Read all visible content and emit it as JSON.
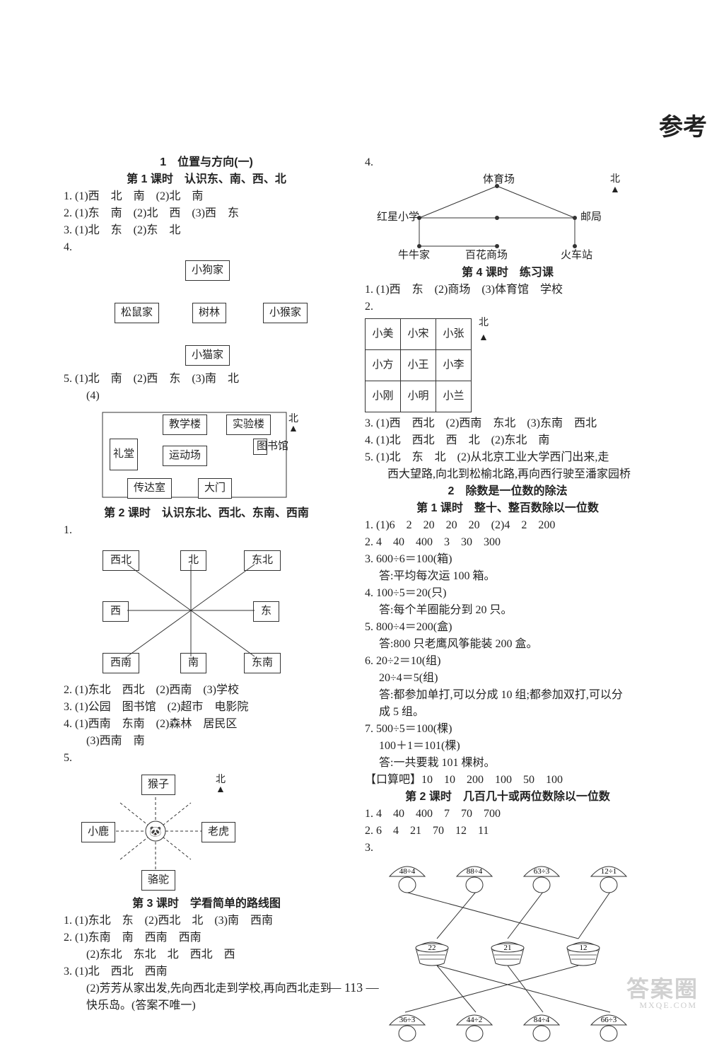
{
  "page_title_right": "参考",
  "page_number": "— 113 —",
  "watermark": "答案圈",
  "watermark_sub": "MXQE.COM",
  "left": {
    "unit1_title": "1　位置与方向(一)",
    "lesson1_title": "第 1 课时　认识东、南、西、北",
    "q1": "1. (1)西　北　南　(2)北　南",
    "q2": "2. (1)东　南　(2)北　西　(3)西　东",
    "q3": "3. (1)北　东　(2)东　北",
    "q4_num": "4.",
    "dia4": {
      "top": "小狗家",
      "left": "松鼠家",
      "mid": "树林",
      "right": "小猴家",
      "bottom": "小猫家"
    },
    "q5": "5. (1)北　南　(2)西　东　(3)南　北",
    "q5_4": "　　(4)",
    "dia5": {
      "teach": "教学楼",
      "lab": "实验楼",
      "hall": "礼堂",
      "field": "运动场",
      "lib": "图书馆",
      "guard": "传达室",
      "gate": "大门",
      "north": "北",
      "arrow": "▲"
    },
    "lesson2_title": "第 2 课时　认识东北、西北、东南、西南",
    "l2_q1_num": "1.",
    "compass": {
      "nw": "西北",
      "n": "北",
      "ne": "东北",
      "w": "西",
      "e": "东",
      "sw": "西南",
      "s": "南",
      "se": "东南"
    },
    "l2_q2": "2. (1)东北　西北　(2)西南　(3)学校",
    "l2_q3": "3. (1)公园　图书馆　(2)超市　电影院",
    "l2_q4a": "4. (1)西南　东南　(2)森林　居民区",
    "l2_q4b": "　　(3)西南　南",
    "l2_q5_num": "5.",
    "dia_animals": {
      "monkey": "猴子",
      "deer": "小鹿",
      "tiger": "老虎",
      "camel": "骆驼",
      "north": "北",
      "arrow": "▲"
    },
    "lesson3_title": "第 3 课时　学看简单的路线图",
    "l3_q1": "1. (1)东北　东　(2)西北　北　(3)南　西南",
    "l3_q2a": "2. (1)东南　南　西南　西南",
    "l3_q2b": "　　(2)东北　东北　北　西北　西",
    "l3_q3a": "3. (1)北　西北　西南",
    "l3_q3b": "　　(2)芳芳从家出发,先向西北走到学校,再向西北走到",
    "l3_q3c": "　　快乐岛。(答案不唯一)"
  },
  "right": {
    "q4_num": "4.",
    "map": {
      "stadium": "体育场",
      "north": "北",
      "arrow": "▲",
      "school": "红星小学",
      "post": "邮局",
      "home": "牛牛家",
      "shop": "百花商场",
      "train": "火车站"
    },
    "lesson4_title": "第 4 课时　练习课",
    "l4_q1": "1. (1)西　东　(2)商场　(3)体育馆　学校",
    "l4_q2_num": "2.",
    "grid_north": "北",
    "grid_arrow": "▲",
    "grid": [
      [
        "小美",
        "小宋",
        "小张"
      ],
      [
        "小方",
        "小王",
        "小李"
      ],
      [
        "小刚",
        "小明",
        "小兰"
      ]
    ],
    "l4_q3": "3. (1)西　西北　(2)西南　东北　(3)东南　西北",
    "l4_q4": "4. (1)北　西北　西　北　(2)东北　南",
    "l4_q5a": "5. (1)北　东　北　(2)从北京工业大学西门出来,走",
    "l4_q5b": "　　西大望路,向北到松榆北路,再向西行驶至潘家园桥",
    "unit2_title": "2　除数是一位数的除法",
    "u2_l1_title": "第 1 课时　整十、整百数除以一位数",
    "u2_q1": "1. (1)6　2　20　20　20　(2)4　2　200",
    "u2_q2": "2. 4　40　400　3　30　300",
    "u2_q3a": "3. 600÷6＝100(箱)",
    "u2_q3b": "　 答:平均每次运 100 箱。",
    "u2_q4a": "4. 100÷5＝20(只)",
    "u2_q4b": "　 答:每个羊圈能分到 20 只。",
    "u2_q5a": "5. 800÷4＝200(盒)",
    "u2_q5b": "　 答:800 只老鹰风筝能装 200 盒。",
    "u2_q6a": "6. 20÷2＝10(组)",
    "u2_q6b": "　 20÷4＝5(组)",
    "u2_q6c": "　 答:都参加单打,可以分成 10 组;都参加双打,可以分",
    "u2_q6d": "　 成 5 组。",
    "u2_q7a": "7. 500÷5＝100(棵)",
    "u2_q7b": "　 100＋1＝101(棵)",
    "u2_q7c": "　 答:一共要栽 101 棵树。",
    "u2_kousuan": "【口算吧】10　10　200　100　50　100",
    "u2_l2_title": "第 2 课时　几百几十或两位数除以一位数",
    "u2l2_q1": "1. 4　40　400　7　70　700",
    "u2l2_q2": "2. 6　4　21　70　12　11",
    "u2l2_q3_num": "3.",
    "mushrooms_top": [
      "48÷4",
      "88÷4",
      "63÷3",
      "12÷1"
    ],
    "baskets": [
      "22",
      "21",
      "12"
    ],
    "mushrooms_bot": [
      "36÷3",
      "44÷2",
      "84÷4",
      "66÷3"
    ],
    "match_lines_top": [
      [
        0,
        2
      ],
      [
        1,
        0
      ],
      [
        2,
        1
      ],
      [
        3,
        2
      ]
    ],
    "match_lines_bot": [
      [
        0,
        2
      ],
      [
        1,
        0
      ],
      [
        2,
        1
      ],
      [
        3,
        0
      ]
    ]
  }
}
